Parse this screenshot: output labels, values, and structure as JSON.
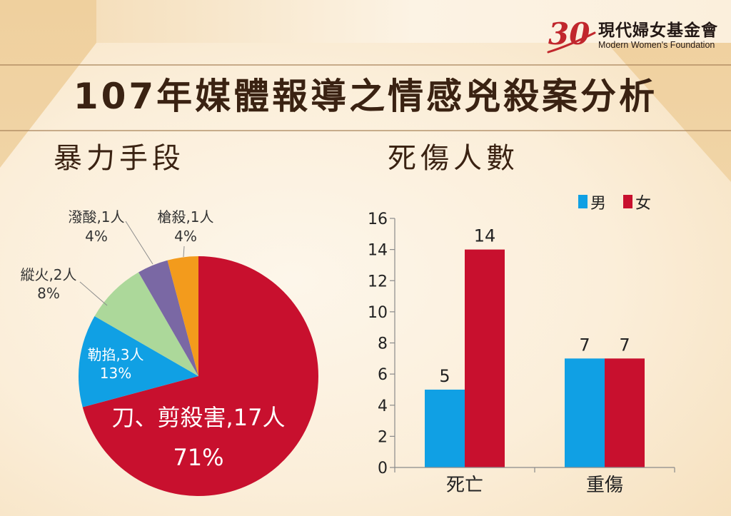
{
  "page": {
    "title": "107年媒體報導之情感兇殺案分析"
  },
  "logo": {
    "mark": "30",
    "mark_color": "#c1272d",
    "org_name_zh": "現代婦女基金會",
    "org_name_en": "Modern Women's Foundation"
  },
  "chart_data": [
    {
      "type": "pie",
      "title": "暴力手段",
      "slices": [
        {
          "label": "刀、剪殺害,17人",
          "value": 17,
          "percent": "71%",
          "color": "#c8102e"
        },
        {
          "label": "勒掐,3人",
          "value": 3,
          "percent": "13%",
          "color": "#10a0e4"
        },
        {
          "label": "縱火,2人",
          "value": 2,
          "percent": "8%",
          "color": "#acd89a"
        },
        {
          "label": "潑酸,1人",
          "value": 1,
          "percent": "4%",
          "color": "#7a68a4"
        },
        {
          "label": "槍殺,1人",
          "value": 1,
          "percent": "4%",
          "color": "#f39b1c"
        }
      ]
    },
    {
      "type": "bar",
      "title": "死傷人數",
      "categories": [
        "死亡",
        "重傷"
      ],
      "series": [
        {
          "name": "男",
          "values": [
            5,
            7
          ],
          "color": "#10a0e4"
        },
        {
          "name": "女",
          "values": [
            14,
            7
          ],
          "color": "#c8102e"
        }
      ],
      "ylim": [
        0,
        16
      ],
      "yticks": [
        0,
        2,
        4,
        6,
        8,
        10,
        12,
        14,
        16
      ],
      "grid": false,
      "legend": "top-right",
      "data_labels": true
    }
  ]
}
